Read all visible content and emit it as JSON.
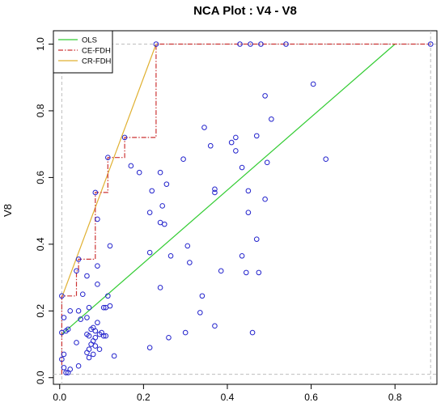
{
  "chart_data": {
    "type": "scatter",
    "title": "NCA Plot : V4 - V8",
    "xlabel": "",
    "ylabel": "V8",
    "xlim": [
      -0.015,
      0.9
    ],
    "ylim": [
      -0.02,
      1.04
    ],
    "x_ticks": [
      0,
      0.2,
      0.4,
      0.6,
      0.8
    ],
    "x_tick_labels": [
      "0.0",
      "0.2",
      "0.4",
      "0.6",
      "0.8"
    ],
    "y_ticks": [
      0,
      0.2,
      0.4,
      0.6,
      0.8,
      1.0
    ],
    "y_tick_labels": [
      "0.0",
      "0.2",
      "0.4",
      "0.6",
      "0.8",
      "1.0"
    ],
    "scope_box": {
      "x": [
        0.005,
        0.885
      ],
      "y": [
        0.01,
        1.0
      ]
    },
    "legend": {
      "position": "top-left",
      "entries": [
        {
          "label": "OLS",
          "color": "#33cc33",
          "dash": "solid"
        },
        {
          "label": "CE-FDH",
          "color": "#cc3333",
          "dash": "dashdot"
        },
        {
          "label": "CR-FDH",
          "color": "#e0b030",
          "dash": "solid"
        }
      ]
    },
    "point_color": "#2222cc",
    "lines": {
      "ols": {
        "x": [
          0.005,
          0.8
        ],
        "y": [
          0.13,
          1.0
        ]
      },
      "cr_fdh": {
        "x": [
          0.005,
          0.23
        ],
        "y": [
          0.24,
          1.0
        ]
      },
      "ce_fdh": {
        "x": [
          0.005,
          0.005,
          0.04,
          0.04,
          0.045,
          0.045,
          0.085,
          0.085,
          0.115,
          0.115,
          0.155,
          0.155,
          0.23,
          0.23,
          0.885
        ],
        "y": [
          0.01,
          0.245,
          0.245,
          0.32,
          0.32,
          0.355,
          0.355,
          0.555,
          0.555,
          0.66,
          0.66,
          0.72,
          0.72,
          1.0,
          1.0
        ]
      }
    },
    "points": [
      [
        0.23,
        1.0
      ],
      [
        0.43,
        1.0
      ],
      [
        0.455,
        1.0
      ],
      [
        0.48,
        1.0
      ],
      [
        0.54,
        1.0
      ],
      [
        0.885,
        1.0
      ],
      [
        0.605,
        0.88
      ],
      [
        0.49,
        0.845
      ],
      [
        0.505,
        0.775
      ],
      [
        0.345,
        0.75
      ],
      [
        0.42,
        0.72
      ],
      [
        0.47,
        0.725
      ],
      [
        0.41,
        0.705
      ],
      [
        0.36,
        0.695
      ],
      [
        0.42,
        0.68
      ],
      [
        0.635,
        0.655
      ],
      [
        0.435,
        0.63
      ],
      [
        0.495,
        0.645
      ],
      [
        0.295,
        0.655
      ],
      [
        0.17,
        0.635
      ],
      [
        0.19,
        0.615
      ],
      [
        0.24,
        0.615
      ],
      [
        0.155,
        0.72
      ],
      [
        0.115,
        0.66
      ],
      [
        0.255,
        0.58
      ],
      [
        0.22,
        0.56
      ],
      [
        0.37,
        0.565
      ],
      [
        0.37,
        0.555
      ],
      [
        0.45,
        0.56
      ],
      [
        0.085,
        0.555
      ],
      [
        0.245,
        0.515
      ],
      [
        0.49,
        0.535
      ],
      [
        0.215,
        0.495
      ],
      [
        0.45,
        0.495
      ],
      [
        0.09,
        0.475
      ],
      [
        0.24,
        0.465
      ],
      [
        0.25,
        0.46
      ],
      [
        0.47,
        0.415
      ],
      [
        0.12,
        0.395
      ],
      [
        0.305,
        0.395
      ],
      [
        0.215,
        0.375
      ],
      [
        0.265,
        0.365
      ],
      [
        0.435,
        0.365
      ],
      [
        0.045,
        0.355
      ],
      [
        0.31,
        0.345
      ],
      [
        0.09,
        0.335
      ],
      [
        0.385,
        0.32
      ],
      [
        0.445,
        0.315
      ],
      [
        0.475,
        0.315
      ],
      [
        0.04,
        0.32
      ],
      [
        0.065,
        0.305
      ],
      [
        0.09,
        0.28
      ],
      [
        0.24,
        0.27
      ],
      [
        0.055,
        0.25
      ],
      [
        0.005,
        0.245
      ],
      [
        0.34,
        0.245
      ],
      [
        0.115,
        0.245
      ],
      [
        0.025,
        0.2
      ],
      [
        0.045,
        0.2
      ],
      [
        0.07,
        0.21
      ],
      [
        0.105,
        0.21
      ],
      [
        0.11,
        0.21
      ],
      [
        0.12,
        0.215
      ],
      [
        0.335,
        0.195
      ],
      [
        0.01,
        0.18
      ],
      [
        0.065,
        0.18
      ],
      [
        0.05,
        0.175
      ],
      [
        0.09,
        0.165
      ],
      [
        0.37,
        0.155
      ],
      [
        0.02,
        0.145
      ],
      [
        0.075,
        0.145
      ],
      [
        0.08,
        0.15
      ],
      [
        0.085,
        0.14
      ],
      [
        0.1,
        0.135
      ],
      [
        0.095,
        0.13
      ],
      [
        0.3,
        0.135
      ],
      [
        0.46,
        0.135
      ],
      [
        0.005,
        0.135
      ],
      [
        0.015,
        0.14
      ],
      [
        0.065,
        0.13
      ],
      [
        0.07,
        0.125
      ],
      [
        0.085,
        0.12
      ],
      [
        0.105,
        0.125
      ],
      [
        0.11,
        0.125
      ],
      [
        0.26,
        0.12
      ],
      [
        0.08,
        0.11
      ],
      [
        0.04,
        0.105
      ],
      [
        0.075,
        0.1
      ],
      [
        0.085,
        0.095
      ],
      [
        0.07,
        0.085
      ],
      [
        0.095,
        0.085
      ],
      [
        0.215,
        0.09
      ],
      [
        0.065,
        0.075
      ],
      [
        0.08,
        0.07
      ],
      [
        0.01,
        0.07
      ],
      [
        0.13,
        0.065
      ],
      [
        0.07,
        0.06
      ],
      [
        0.005,
        0.055
      ],
      [
        0.045,
        0.035
      ],
      [
        0.01,
        0.03
      ],
      [
        0.025,
        0.025
      ],
      [
        0.015,
        0.015
      ],
      [
        0.02,
        0.015
      ]
    ]
  }
}
